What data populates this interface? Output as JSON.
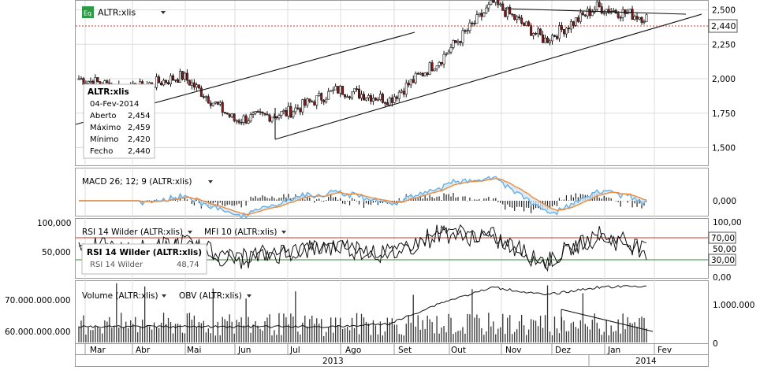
{
  "colors": {
    "price_line": "#111111",
    "grid": "#dcdcdc",
    "last_price_ref": "#c0392b",
    "macd_line": "#6aaee0",
    "signal_line": "#f08a3c",
    "macd_fill": "#cfe6f7",
    "rsi_upper": "#c0392b",
    "rsi_lower": "#3a8a3a",
    "background": "#ffffff",
    "axis_text": "#000000"
  },
  "main_panel": {
    "instrument_label": "ALTR:xlis",
    "instrument_icon": "Eq",
    "y_ticks": [
      "2,500",
      "2,250",
      "2,000",
      "1,750",
      "1,500"
    ],
    "y_tick_values": [
      2.5,
      2.25,
      2.0,
      1.75,
      1.5
    ],
    "last_price": "2,440",
    "tooltip": {
      "title": "ALTR:xlis",
      "date": "04-Fev-2014",
      "rows": [
        {
          "label": "Aberto",
          "value": "2,454"
        },
        {
          "label": "Máximo",
          "value": "2,459"
        },
        {
          "label": "Mínimo",
          "value": "2,420"
        },
        {
          "label": "Fecho",
          "value": "2,440"
        }
      ]
    }
  },
  "macd_panel": {
    "label": "MACD 26; 12; 9 (ALTR:xlis)",
    "y_ticks": [
      "0,000"
    ]
  },
  "rsi_panel": {
    "rsi_label": "RSI 14 Wilder (ALTR:xlis)",
    "mfi_label": "MFI 10 (ALTR:xlis)",
    "y_ticks_left": [
      "100,000",
      "50,000"
    ],
    "y_ticks_right": [
      "100,00",
      "50,00",
      "30,00",
      "0,00"
    ],
    "upper_band": "70,00",
    "lower_band": "30,00",
    "tooltip": {
      "title": "RSI 14 Wilder (ALTR:xlis)",
      "row_label": "RSI 14 Wilder",
      "row_value": "48,74"
    }
  },
  "volume_panel": {
    "volume_label": "Volume (ALTR:xlis)",
    "obv_label": "OBV (ALTR:xlis)",
    "y_ticks_left": [
      "70.000.000.000",
      "60.000.000.000"
    ],
    "y_ticks_right": [
      "1.000.000",
      "0"
    ]
  },
  "x_axis": {
    "months": [
      "Mar",
      "Abr",
      "Mai",
      "Jun",
      "Jul",
      "Ago",
      "Set",
      "Out",
      "Nov",
      "Dez",
      "Jan",
      "Fev"
    ],
    "years": [
      "2013",
      "2014"
    ]
  },
  "chart_data": {
    "type": "line",
    "title": "ALTR:xlis",
    "ylim": [
      1.4,
      2.6
    ],
    "x": [
      "Mar 2013",
      "Abr 2013",
      "Mai 2013",
      "Jun 2013",
      "Jul 2013",
      "Ago 2013",
      "Set 2013",
      "Out 2013",
      "Nov 2013",
      "Dez 2013",
      "Jan 2014",
      "Fev 2014"
    ],
    "series": [
      {
        "name": "ALTR:xlis",
        "values": [
          2.0,
          1.92,
          2.02,
          1.7,
          1.75,
          1.92,
          1.85,
          2.15,
          2.55,
          2.28,
          2.52,
          2.44
        ]
      },
      {
        "name": "RSI 14 Wilder (ALTR:xlis)",
        "values": [
          55,
          45,
          60,
          30,
          45,
          55,
          40,
          80,
          70,
          25,
          75,
          48.74
        ]
      },
      {
        "name": "OBV (ALTR:xlis)",
        "values": [
          0,
          0,
          0,
          0,
          0,
          0,
          100000,
          800000,
          1300000,
          1050000,
          1300000,
          1350000
        ]
      }
    ],
    "grid": true,
    "legend": "top-left"
  }
}
